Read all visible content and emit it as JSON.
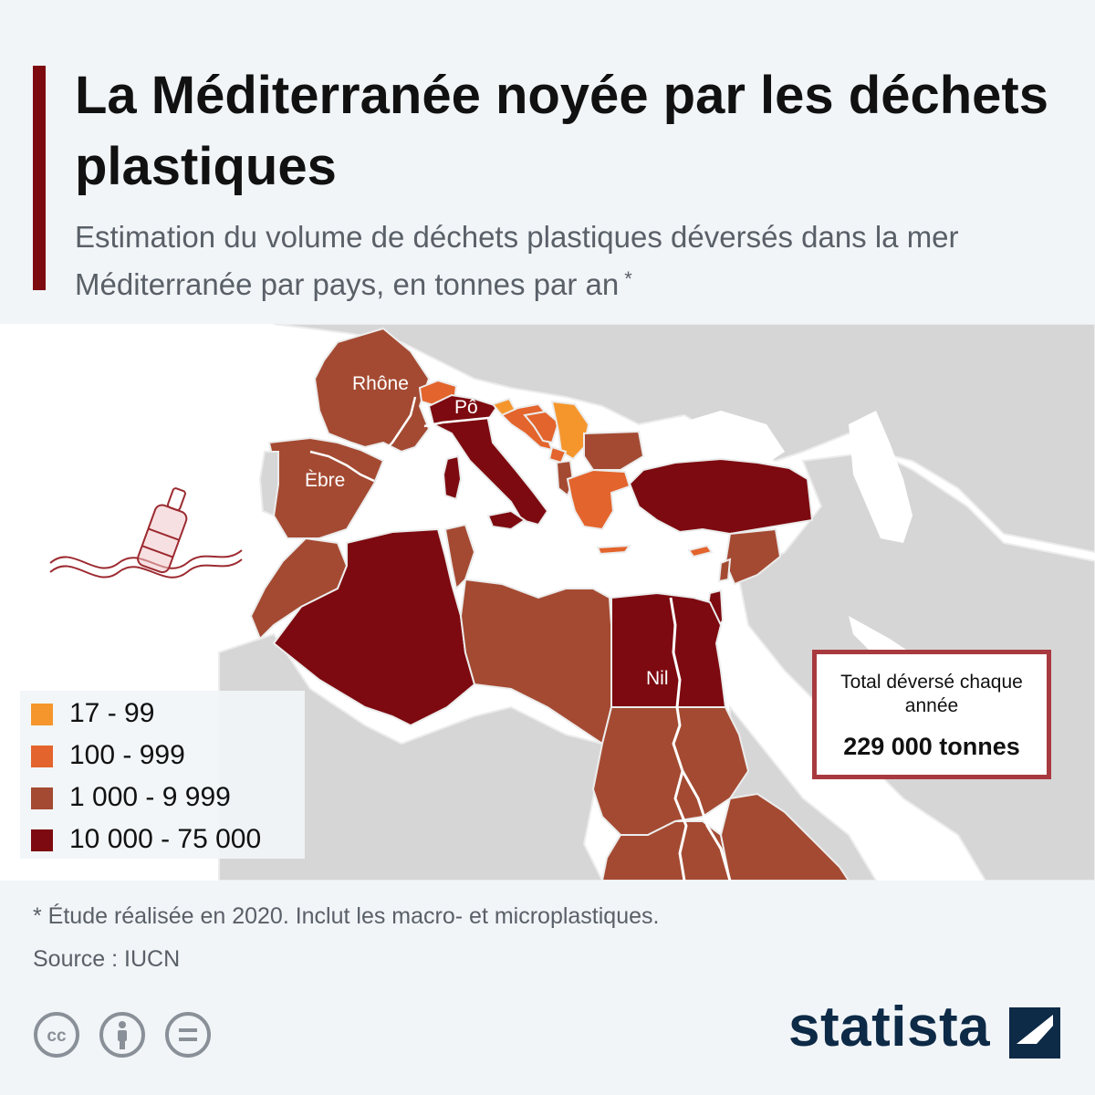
{
  "header": {
    "title": "La Méditerranée noyée par les déchets plastiques",
    "subtitle": "Estimation du volume de déchets plastiques déversés dans la mer Méditerranée par pays, en tonnes par an",
    "subtitle_marker": "*"
  },
  "map": {
    "rivers": {
      "rhone": "Rhône",
      "po": "Pô",
      "ebre": "Èbre",
      "nil": "Nil"
    },
    "colors": {
      "sea": "#ffffff",
      "land": "#d6d6d6",
      "border": "#ececec"
    }
  },
  "legend": {
    "items": [
      {
        "label": "17 - 99",
        "color": "#f5962d"
      },
      {
        "label": "100 - 999",
        "color": "#e3642c"
      },
      {
        "label": "1 000 - 9 999",
        "color": "#a44a32"
      },
      {
        "label": "10 000 - 75 000",
        "color": "#7d0a10"
      }
    ]
  },
  "total": {
    "label": "Total déversé chaque année",
    "value": "229 000 tonnes"
  },
  "footer": {
    "footnote": "* Étude réalisée en 2020. Inclut les macro- et microplastiques.",
    "source": "Source : IUCN",
    "license_icons": [
      "creative-commons-icon",
      "attribution-icon",
      "no-derivatives-icon"
    ],
    "brand": "statista"
  }
}
